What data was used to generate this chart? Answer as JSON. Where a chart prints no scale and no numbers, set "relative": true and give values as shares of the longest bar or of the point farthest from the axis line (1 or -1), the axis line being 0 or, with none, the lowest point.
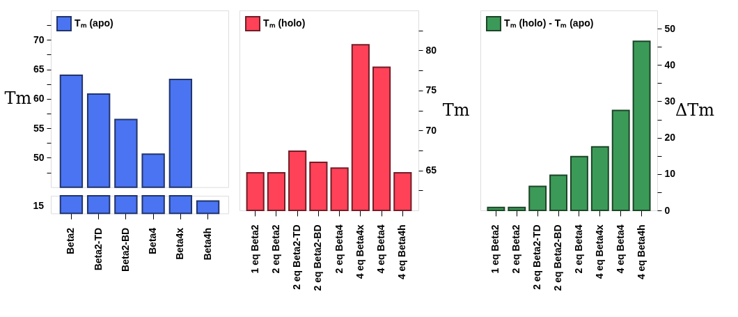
{
  "chart_data": [
    {
      "type": "bar",
      "categories": [
        "Beta2",
        "Beta2-TD",
        "Beta2-BD",
        "Beta4",
        "Beta4x",
        "Beta4h"
      ],
      "series": [
        {
          "name": "Tₘ (apo)",
          "color": "#4a74f2",
          "values": [
            64.0,
            60.8,
            56.5,
            50.6,
            63.3,
            null
          ]
        }
      ],
      "ylabel": "Tm",
      "ylim": [
        45,
        75
      ],
      "yticks": [
        {
          "value": 47.5,
          "label": null
        },
        50,
        {
          "value": 52.5,
          "label": null
        },
        55,
        {
          "value": 57.5,
          "label": null
        },
        60,
        {
          "value": 62.5,
          "label": null
        },
        65,
        {
          "value": 67.5,
          "label": null
        },
        70,
        {
          "value": 72.5,
          "label": null
        }
      ],
      "tick_labels": "y",
      "legend": "top left",
      "grid": false
    },
    {
      "type": "bar",
      "categories": [
        null,
        null,
        null,
        null,
        null,
        null
      ],
      "series": [
        {
          "color": "#4a74f2",
          "values": [
            1,
            1,
            1,
            1,
            1,
            0.7
          ]
        }
      ],
      "relative": true,
      "annotations": [
        "15"
      ],
      "grid": false
    },
    {
      "type": "bar",
      "categories": [
        "1 eq Beta2",
        "2 eq Beta2",
        "2 eq Beta2-TD",
        "2 eq Beta2-BD",
        "2 eq Beta4",
        "4 eq Beta4x",
        "4 eq Beta4",
        "4 eq Beta4h"
      ],
      "series": [
        {
          "name": "Tₘ (holo)",
          "color": "#ff4258",
          "axis": "y2",
          "values": [
            64.7,
            64.7,
            67.4,
            66.0,
            65.3,
            80.7,
            77.9,
            64.7
          ]
        }
      ],
      "y2label": "Tm",
      "y2lim": [
        60,
        85
      ],
      "y2ticks": [
        {
          "value": 62.5,
          "label": null
        },
        65,
        {
          "value": 67.5,
          "label": null
        },
        70,
        {
          "value": 72.5,
          "label": null
        },
        75,
        {
          "value": 77.5,
          "label": null
        },
        80,
        {
          "value": 82.5,
          "label": null
        }
      ],
      "legend": "top left",
      "grid": false
    },
    {
      "type": "bar",
      "categories": [
        "1 eq Beta2",
        "2 eq Beta2",
        "2 eq Beta2-TD",
        "2 eq Beta2-BD",
        "2 eq Beta4",
        "4 eq Beta4x",
        "4 eq Beta4",
        "4 eq Beta4h"
      ],
      "series": [
        {
          "name": "Tₘ (holo) - Tₘ (apo)",
          "color": "#3c9a58",
          "axis": "y2",
          "values": [
            0.8,
            0.8,
            6.6,
            9.7,
            14.8,
            17.5,
            27.5,
            46.5
          ]
        }
      ],
      "y2label": "ΔTm",
      "y2lim": [
        0,
        55
      ],
      "y2ticks": [
        0,
        {
          "value": 5,
          "label": null
        },
        10,
        {
          "value": 15,
          "label": null
        },
        20,
        {
          "value": 25,
          "label": null
        },
        30,
        {
          "value": 35,
          "label": null
        },
        40,
        {
          "value": 45,
          "label": null
        },
        50
      ],
      "legend": "top left",
      "grid": false
    }
  ]
}
